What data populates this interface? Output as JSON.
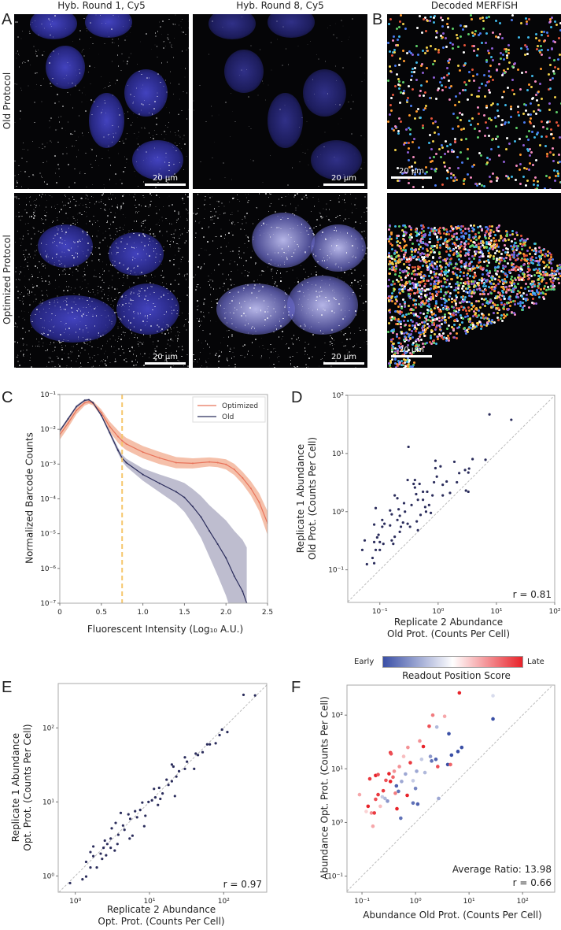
{
  "panels": {
    "A": "A",
    "B": "B",
    "C": "C",
    "D": "D",
    "E": "E",
    "F": "F"
  },
  "microscopy": {
    "col_titles": [
      "Hyb. Round 1, Cy5",
      "Hyb. Round 8, Cy5",
      "Decoded MERFISH"
    ],
    "row_labels": [
      "Old Protocol",
      "Optimized Protocol"
    ],
    "scale_bar": "20 µm"
  },
  "chart_data": [
    {
      "id": "C",
      "type": "line",
      "title": "",
      "xlabel": "Fluorescent Intensity (Log₁₀ A.U.)",
      "ylabel": "Normalized Barcode Counts",
      "xlim": [
        0,
        2.5
      ],
      "ylim": [
        1e-07,
        0.1
      ],
      "yscale": "log",
      "xticks": [
        0,
        0.5,
        1.0,
        1.5,
        2.0,
        2.5
      ],
      "xtick_labels": [
        "0",
        "0.5",
        "1.0",
        "1.5",
        "2.0",
        "2.5"
      ],
      "yticks": [
        -1,
        -2,
        -3,
        -4,
        -5,
        -6,
        -7
      ],
      "ytick_labels": [
        "10⁻¹",
        "10⁻²",
        "10⁻³",
        "10⁻⁴",
        "10⁻⁵",
        "10⁻⁶",
        "10⁻⁷"
      ],
      "threshold_x": 0.75,
      "legend_position": "top-right",
      "series": [
        {
          "name": "Optimized",
          "color": "#e8735a",
          "band_color": "#f3b095",
          "x": [
            0,
            0.1,
            0.2,
            0.3,
            0.35,
            0.4,
            0.5,
            0.6,
            0.7,
            0.75,
            0.8,
            1.0,
            1.2,
            1.4,
            1.6,
            1.8,
            1.9,
            2.0,
            2.1,
            2.2,
            2.3,
            2.4,
            2.5
          ],
          "y": [
            0.007,
            0.015,
            0.035,
            0.058,
            0.062,
            0.056,
            0.03,
            0.012,
            0.0062,
            0.0047,
            0.0038,
            0.0022,
            0.0015,
            0.0011,
            0.00105,
            0.00115,
            0.0011,
            0.00098,
            0.0007,
            0.0004,
            0.0002,
            8e-05,
            2e-05
          ],
          "band_factor": [
            1.4,
            1.35,
            1.3,
            1.2,
            1.15,
            1.15,
            1.25,
            1.4,
            1.5,
            1.5,
            1.5,
            1.5,
            1.5,
            1.45,
            1.4,
            1.35,
            1.35,
            1.4,
            1.45,
            1.5,
            1.6,
            1.8,
            2.2
          ]
        },
        {
          "name": "Old",
          "color": "#2b2d5c",
          "band_color": "#aeadc3",
          "x": [
            0,
            0.1,
            0.2,
            0.3,
            0.35,
            0.4,
            0.5,
            0.6,
            0.7,
            0.75,
            0.8,
            1.0,
            1.2,
            1.4,
            1.5,
            1.6,
            1.7,
            1.8,
            1.9,
            2.0,
            2.1,
            2.2,
            2.25
          ],
          "y": [
            0.009,
            0.02,
            0.045,
            0.068,
            0.071,
            0.058,
            0.025,
            0.008,
            0.0025,
            0.0015,
            0.0011,
            0.0005,
            0.00028,
            0.00016,
            0.00011,
            6e-05,
            3e-05,
            1.2e-05,
            5e-06,
            2e-06,
            6e-07,
            2.2e-07,
            1e-07
          ],
          "band_factor": [
            1.1,
            1.1,
            1.1,
            1.08,
            1.05,
            1.05,
            1.1,
            1.15,
            1.2,
            1.25,
            1.3,
            1.5,
            1.8,
            2.2,
            2.6,
            3.2,
            4,
            5.5,
            8,
            12,
            20,
            30,
            40
          ]
        }
      ]
    },
    {
      "id": "D",
      "type": "scatter",
      "xscale": "log",
      "yscale": "log",
      "xlabel": "Replicate 2 Abundance\nOld Prot. (Counts Per Cell)",
      "ylabel": "Replicate 1 Abundance\nOld Prot. (Counts Per Cell)",
      "xlim_log10": [
        -1.55,
        2
      ],
      "ylim_log10": [
        -1.56,
        2
      ],
      "xticks": [
        -1,
        0,
        1,
        2
      ],
      "xtick_labels": [
        "10⁻¹",
        "10⁰",
        "10¹",
        "10²"
      ],
      "yticks": [
        -1,
        0,
        1,
        2
      ],
      "ytick_labels": [
        "10⁻¹",
        "10⁰",
        "10¹",
        "10²"
      ],
      "annotation": "r = 0.81",
      "color": "#2b2d5c",
      "points": [
        [
          0.05,
          0.22
        ],
        [
          0.055,
          0.32
        ],
        [
          0.06,
          0.125
        ],
        [
          0.075,
          0.16
        ],
        [
          0.08,
          0.6
        ],
        [
          0.08,
          0.3
        ],
        [
          0.08,
          0.13
        ],
        [
          0.085,
          1.15
        ],
        [
          0.085,
          0.22
        ],
        [
          0.09,
          0.36
        ],
        [
          0.095,
          0.4
        ],
        [
          0.1,
          0.3
        ],
        [
          0.1,
          0.22
        ],
        [
          0.11,
          0.72
        ],
        [
          0.11,
          0.55
        ],
        [
          0.115,
          0.28
        ],
        [
          0.12,
          0.62
        ],
        [
          0.15,
          1.05
        ],
        [
          0.15,
          0.58
        ],
        [
          0.16,
          0.9
        ],
        [
          0.16,
          0.32
        ],
        [
          0.17,
          0.28
        ],
        [
          0.18,
          1.9
        ],
        [
          0.18,
          0.37
        ],
        [
          0.2,
          0.72
        ],
        [
          0.2,
          1.7
        ],
        [
          0.21,
          1.1
        ],
        [
          0.22,
          0.85
        ],
        [
          0.22,
          0.45
        ],
        [
          0.23,
          0.55
        ],
        [
          0.25,
          0.65
        ],
        [
          0.26,
          1.4
        ],
        [
          0.27,
          1.0
        ],
        [
          0.3,
          0.62
        ],
        [
          0.3,
          3.5
        ],
        [
          0.31,
          13
        ],
        [
          0.33,
          0.55
        ],
        [
          0.35,
          1.3
        ],
        [
          0.38,
          3.0
        ],
        [
          0.4,
          2.6
        ],
        [
          0.4,
          3.5
        ],
        [
          0.42,
          2.0
        ],
        [
          0.43,
          0.68
        ],
        [
          0.45,
          1.6
        ],
        [
          0.45,
          0.48
        ],
        [
          0.48,
          3.0
        ],
        [
          0.5,
          0.88
        ],
        [
          0.55,
          2.2
        ],
        [
          0.55,
          1.6
        ],
        [
          0.6,
          1.2
        ],
        [
          0.62,
          1.0
        ],
        [
          0.65,
          2.2
        ],
        [
          0.7,
          1.3
        ],
        [
          0.75,
          0.95
        ],
        [
          0.8,
          1.9
        ],
        [
          0.85,
          3.2
        ],
        [
          0.9,
          7.5
        ],
        [
          0.9,
          5.6
        ],
        [
          0.95,
          4
        ],
        [
          1.1,
          6
        ],
        [
          1.2,
          2.9
        ],
        [
          1.2,
          1.9
        ],
        [
          1.4,
          3.3
        ],
        [
          1.6,
          2.1
        ],
        [
          1.9,
          7.2
        ],
        [
          2.1,
          3.2
        ],
        [
          2.3,
          4.6
        ],
        [
          2.9,
          5.2
        ],
        [
          3,
          2.3
        ],
        [
          3.3,
          2.2
        ],
        [
          3.3,
          4.7
        ],
        [
          3.4,
          5.5
        ],
        [
          3.9,
          8
        ],
        [
          6.5,
          7.8
        ],
        [
          7.6,
          47
        ],
        [
          18,
          38
        ]
      ]
    },
    {
      "id": "E",
      "type": "scatter",
      "xscale": "log",
      "yscale": "log",
      "xlabel": "Replicate 2 Abundance\nOpt. Prot. (Counts Per Cell)",
      "ylabel": "Replicate 1 Abundance\nOpt. Prot. (Counts Per Cell)",
      "xlim_log10": [
        -0.23,
        2.58
      ],
      "ylim_log10": [
        -0.22,
        2.6
      ],
      "xticks": [
        0,
        1,
        2
      ],
      "xtick_labels": [
        "10⁰",
        "10¹",
        "10²"
      ],
      "yticks": [
        0,
        1,
        2
      ],
      "ytick_labels": [
        "10⁰",
        "10¹",
        "10²"
      ],
      "annotation": "r = 0.97",
      "color": "#2b2d5c",
      "points": [
        [
          0.85,
          0.8
        ],
        [
          1.25,
          0.9
        ],
        [
          1.4,
          0.98
        ],
        [
          1.4,
          1.55
        ],
        [
          1.6,
          1.3
        ],
        [
          1.6,
          2.1
        ],
        [
          1.75,
          1.85
        ],
        [
          1.75,
          2.5
        ],
        [
          1.95,
          1.3
        ],
        [
          2.2,
          2.0
        ],
        [
          2.3,
          1.7
        ],
        [
          2.4,
          2.4
        ],
        [
          2.5,
          3.0
        ],
        [
          2.6,
          1.9
        ],
        [
          2.7,
          2.7
        ],
        [
          3,
          3.2
        ],
        [
          3,
          2.4
        ],
        [
          3.1,
          4.4
        ],
        [
          3.4,
          2.2
        ],
        [
          3.5,
          5.2
        ],
        [
          3.7,
          2.7
        ],
        [
          3.8,
          3.6
        ],
        [
          4.1,
          7.1
        ],
        [
          4.4,
          4.8
        ],
        [
          4.6,
          4.2
        ],
        [
          5.2,
          6.8
        ],
        [
          5.4,
          3.2
        ],
        [
          5.5,
          5.9
        ],
        [
          5.9,
          3.5
        ],
        [
          6.4,
          7.5
        ],
        [
          6.8,
          6.2
        ],
        [
          7.5,
          7.8
        ],
        [
          8,
          9.8
        ],
        [
          8.5,
          4.7
        ],
        [
          8.8,
          6.5
        ],
        [
          9.7,
          10
        ],
        [
          10.8,
          10.5
        ],
        [
          11.5,
          15
        ],
        [
          12,
          11.5
        ],
        [
          13,
          9.1
        ],
        [
          13.5,
          15.5
        ],
        [
          14,
          11
        ],
        [
          15,
          13
        ],
        [
          17,
          20
        ],
        [
          18,
          17
        ],
        [
          20,
          19
        ],
        [
          20,
          32
        ],
        [
          21,
          30
        ],
        [
          22,
          12
        ],
        [
          23,
          22
        ],
        [
          25,
          26
        ],
        [
          30,
          40
        ],
        [
          30,
          28
        ],
        [
          32,
          35
        ],
        [
          40,
          28
        ],
        [
          42,
          45
        ],
        [
          45,
          43
        ],
        [
          52,
          47
        ],
        [
          60,
          60
        ],
        [
          65,
          60
        ],
        [
          78,
          62
        ],
        [
          88,
          80
        ],
        [
          95,
          95
        ],
        [
          112,
          88
        ],
        [
          185,
          280
        ],
        [
          265,
          275
        ]
      ]
    },
    {
      "id": "F",
      "type": "scatter",
      "xscale": "log",
      "yscale": "log",
      "xlabel": "Abundance Old Prot. (Counts Per Cell)",
      "ylabel": "Abundance Opt. Prot. (Counts Per Cell)",
      "xlim_log10": [
        -1.28,
        2.6
      ],
      "ylim_log10": [
        -1.3,
        2.56
      ],
      "xticks": [
        -1,
        0,
        1,
        2
      ],
      "xtick_labels": [
        "10⁻¹",
        "10⁰",
        "10¹",
        "10²"
      ],
      "yticks": [
        -1,
        0,
        1,
        2
      ],
      "ytick_labels": [
        "10⁻¹",
        "10⁰",
        "10¹",
        "10²"
      ],
      "annotations": [
        "Average Ratio: 13.98",
        "r = 0.66"
      ],
      "colorbar": {
        "title": "Readout Position Score",
        "low_label": "Early",
        "high_label": "Late",
        "low_color": "#3a4fa6",
        "mid_color": "#ffffff",
        "high_color": "#e8232a",
        "range": [
          -1,
          1
        ]
      },
      "points": [
        [
          0.09,
          3.3,
          0.4
        ],
        [
          0.12,
          1.6,
          0.2
        ],
        [
          0.13,
          2.0,
          1
        ],
        [
          0.14,
          6.5,
          0.9
        ],
        [
          0.15,
          1.5,
          0.5
        ],
        [
          0.16,
          0.85,
          0.4
        ],
        [
          0.17,
          1.5,
          0.9
        ],
        [
          0.18,
          2.7,
          0.8
        ],
        [
          0.18,
          7.5,
          1
        ],
        [
          0.2,
          3.3,
          0.9
        ],
        [
          0.2,
          7.8,
          0.8
        ],
        [
          0.22,
          2.0,
          0.3
        ],
        [
          0.24,
          3.0,
          -0.3
        ],
        [
          0.25,
          3.9,
          0.9
        ],
        [
          0.27,
          2.8,
          -0.4
        ],
        [
          0.28,
          6.1,
          0.8
        ],
        [
          0.3,
          2.5,
          -0.6
        ],
        [
          0.32,
          8.1,
          1
        ],
        [
          0.34,
          5.8,
          1
        ],
        [
          0.34,
          20,
          0.9
        ],
        [
          0.35,
          19,
          0.8
        ],
        [
          0.38,
          7,
          0.7
        ],
        [
          0.4,
          9,
          0.5
        ],
        [
          0.42,
          3.5,
          0.6
        ],
        [
          0.44,
          4.8,
          -0.9
        ],
        [
          0.45,
          1.8,
          1
        ],
        [
          0.48,
          3.8,
          -0.8
        ],
        [
          0.5,
          11,
          0.5
        ],
        [
          0.53,
          1.2,
          -0.8
        ],
        [
          0.55,
          5.8,
          -0.5
        ],
        [
          0.6,
          17,
          0.3
        ],
        [
          0.65,
          8,
          -0.5
        ],
        [
          0.7,
          3.2,
          1
        ],
        [
          0.72,
          25,
          0.5
        ],
        [
          0.8,
          13,
          0.9
        ],
        [
          0.9,
          2.3,
          -0.8
        ],
        [
          0.9,
          6,
          -0.3
        ],
        [
          1.0,
          4.3,
          -0.7
        ],
        [
          1.05,
          9,
          -0.5
        ],
        [
          1.1,
          2.2,
          -0.9
        ],
        [
          1.2,
          33,
          0.5
        ],
        [
          1.3,
          15,
          -0.3
        ],
        [
          1.4,
          26,
          1
        ],
        [
          1.5,
          8.5,
          -0.4
        ],
        [
          1.8,
          62,
          0.8
        ],
        [
          1.9,
          17,
          -0.6
        ],
        [
          2.0,
          14,
          -0.8
        ],
        [
          2.1,
          100,
          0.6
        ],
        [
          2.4,
          15,
          -0.9
        ],
        [
          2.5,
          60,
          -0.4
        ],
        [
          2.6,
          11,
          0.8
        ],
        [
          2.7,
          2.8,
          -0.5
        ],
        [
          3.5,
          95,
          0.4
        ],
        [
          4.0,
          12,
          -1
        ],
        [
          4.2,
          45,
          -1
        ],
        [
          4.5,
          12,
          0.7
        ],
        [
          4.7,
          18,
          -1
        ],
        [
          6.2,
          21,
          -1
        ],
        [
          6.6,
          260,
          1
        ],
        [
          7.3,
          25,
          -1
        ],
        [
          28,
          230,
          -0.2
        ],
        [
          28,
          85,
          -1
        ]
      ]
    }
  ]
}
